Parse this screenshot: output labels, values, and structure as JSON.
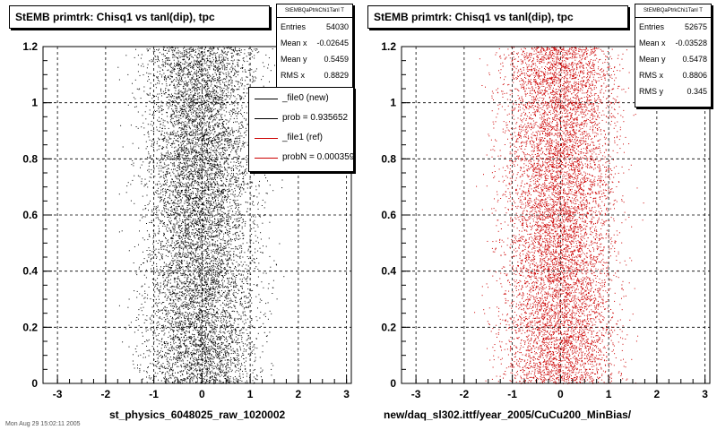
{
  "left_panel": {
    "title": "StEMB primtrk: Chisq1 vs tanl(dip), tpc",
    "stats": {
      "title": "StEMBQaPtrkChi1Tanl T",
      "rows": [
        {
          "key": "Entries",
          "value": "54030"
        },
        {
          "key": "Mean x",
          "value": "-0.02645"
        },
        {
          "key": "Mean y",
          "value": "0.5459"
        },
        {
          "key": "RMS x",
          "value": "0.8829"
        }
      ]
    },
    "legend": [
      {
        "label": "_file0 (new)",
        "color": "#000000"
      },
      {
        "label": "prob = 0.935652",
        "color": "#000000"
      },
      {
        "label": "_file1 (ref)",
        "color": "#cc0000"
      },
      {
        "label": "probN = 0.000359",
        "color": "#cc0000"
      }
    ],
    "xtitle": "st_physics_6048025_raw_1020002",
    "footer_text": "Mon Aug 29 15:02:11 2005"
  },
  "right_panel": {
    "title": "StEMB primtrk: Chisq1 vs tanl(dip), tpc",
    "stats": {
      "title": "StEMBQaPtrkChi1Tanl T",
      "rows": [
        {
          "key": "Entries",
          "value": "52675"
        },
        {
          "key": "Mean x",
          "value": "-0.03528"
        },
        {
          "key": "Mean y",
          "value": "0.5478"
        },
        {
          "key": "RMS x",
          "value": "0.8806"
        },
        {
          "key": "RMS y",
          "value": "0.345"
        }
      ]
    },
    "xtitle": "new/daq_sl302.ittf/year_2005/CuCu200_MinBias/"
  },
  "chart_data": [
    {
      "type": "scatter",
      "title": "StEMB primtrk: Chisq1 vs tanl(dip), tpc",
      "xlabel": "st_physics_6048025_raw_1020002",
      "ylabel": "",
      "xlim": [
        -3.3,
        3.1
      ],
      "ylim": [
        0,
        1.2
      ],
      "xticks": [
        -3,
        -2,
        -1,
        0,
        1,
        2,
        3
      ],
      "yticks": [
        0,
        0.2,
        0.4,
        0.6,
        0.8,
        1,
        1.2
      ],
      "grid": true,
      "series": [
        {
          "name": "_file0 (new)",
          "color": "#000000",
          "entries": 54030,
          "mean_x": -0.02645,
          "mean_y": 0.5459,
          "rms_x": 0.8829,
          "x_range": [
            -2.05,
            2.0
          ],
          "y_range": [
            0,
            1.2
          ]
        }
      ]
    },
    {
      "type": "scatter",
      "title": "StEMB primtrk: Chisq1 vs tanl(dip), tpc",
      "xlabel": "new/daq_sl302.ittf/year_2005/CuCu200_MinBias/",
      "ylabel": "",
      "xlim": [
        -3.3,
        3.1
      ],
      "ylim": [
        0,
        1.2
      ],
      "xticks": [
        -3,
        -2,
        -1,
        0,
        1,
        2,
        3
      ],
      "yticks": [
        0,
        0.2,
        0.4,
        0.6,
        0.8,
        1,
        1.2
      ],
      "grid": true,
      "series": [
        {
          "name": "_file1 (ref)",
          "color": "#cc0000",
          "entries": 52675,
          "mean_x": -0.03528,
          "mean_y": 0.5478,
          "rms_x": 0.8806,
          "rms_y": 0.345,
          "x_range": [
            -2.05,
            2.0
          ],
          "y_range": [
            0,
            1.2
          ]
        }
      ]
    }
  ]
}
